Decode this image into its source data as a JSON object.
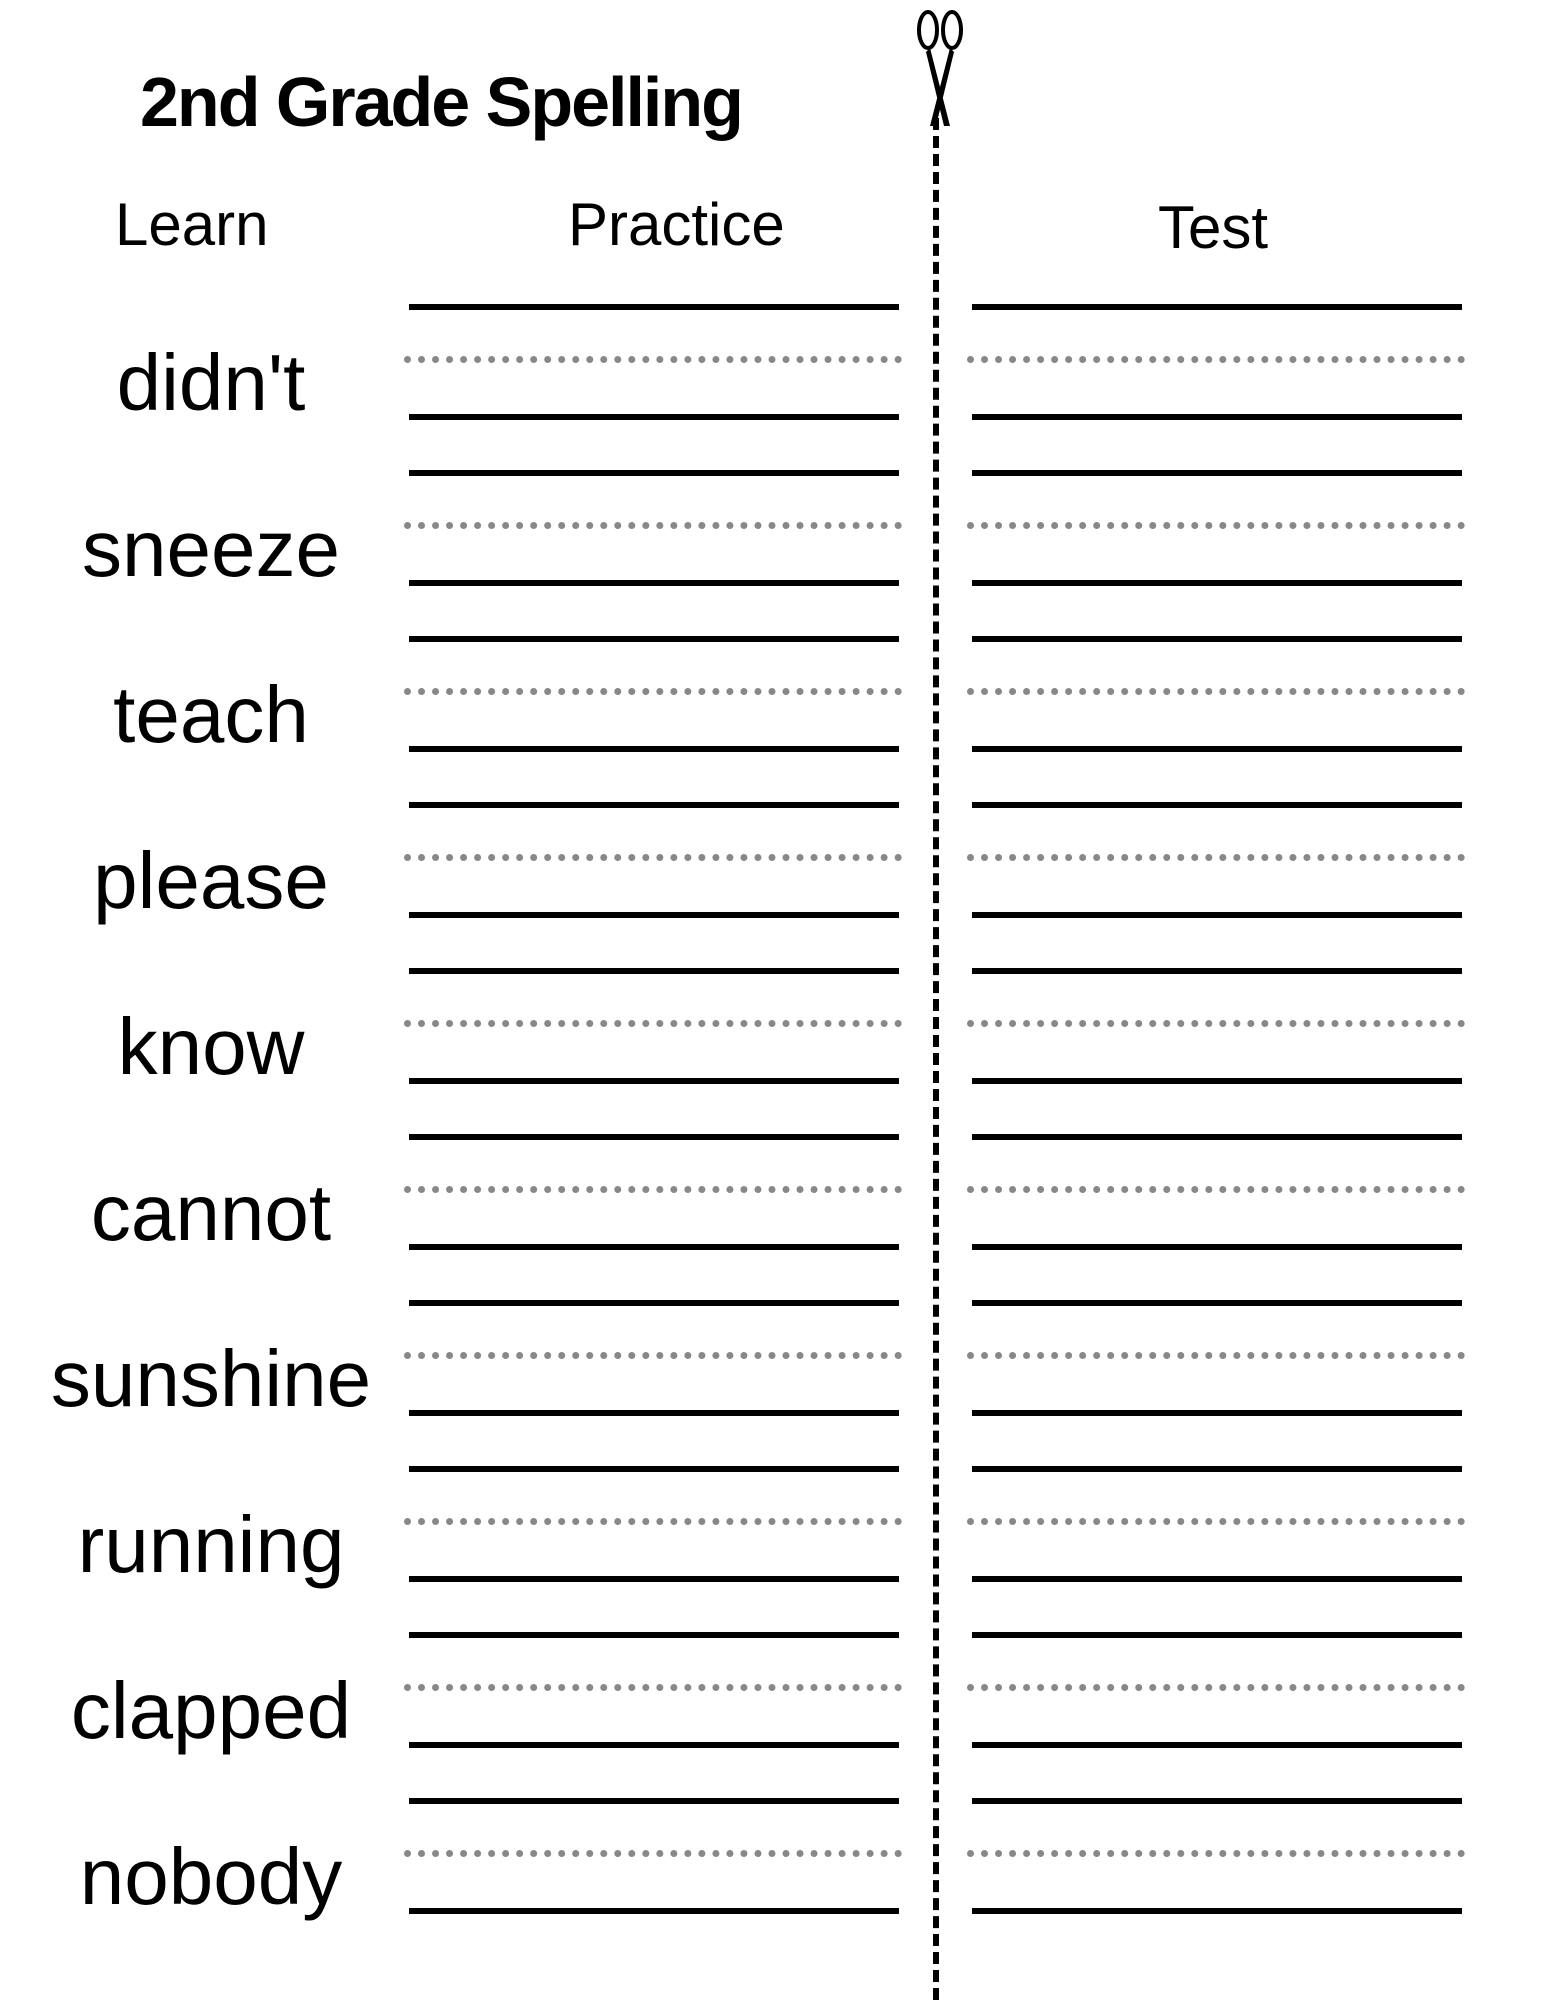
{
  "title": "2nd Grade Spelling",
  "headers": {
    "learn": "Learn",
    "practice": "Practice",
    "test": "Test"
  },
  "icons": {
    "cut_guide": "scissors-icon"
  },
  "words": [
    "didn't",
    "sneeze",
    "teach",
    "please",
    "know",
    "cannot",
    "sunshine",
    "running",
    "clapped",
    "nobody"
  ]
}
